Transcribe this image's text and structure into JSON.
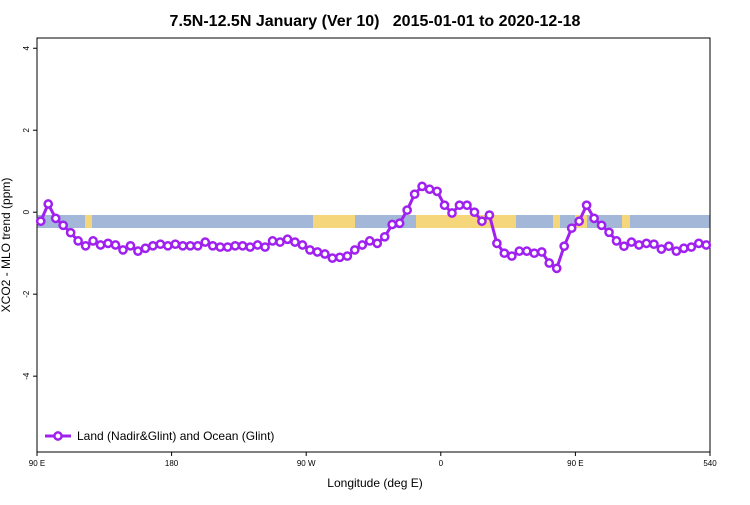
{
  "chart_data": {
    "type": "line",
    "title": "7.5N-12.5N January (Ver 10)   2015-01-01 to 2020-12-18",
    "xlabel": "Longitude (deg E)",
    "ylabel": "XCO2 - MLO trend (ppm)",
    "x": [
      92.5,
      97.5,
      102.5,
      107.5,
      112.5,
      117.5,
      122.5,
      127.5,
      132.5,
      137.5,
      142.5,
      147.5,
      152.5,
      157.5,
      162.5,
      167.5,
      172.5,
      177.5,
      182.5,
      187.5,
      192.5,
      197.5,
      202.5,
      207.5,
      212.5,
      217.5,
      222.5,
      227.5,
      232.5,
      237.5,
      242.5,
      247.5,
      252.5,
      257.5,
      262.5,
      267.5,
      272.5,
      277.5,
      282.5,
      287.5,
      292.5,
      297.5,
      302.5,
      307.5,
      312.5,
      317.5,
      322.5,
      327.5,
      332.5,
      337.5,
      342.5,
      347.5,
      352.5,
      357.5,
      362.5,
      367.5,
      372.5,
      377.5,
      382.5,
      387.5,
      392.5,
      397.5,
      402.5,
      407.5,
      412.5,
      417.5,
      422.5,
      427.5,
      432.5,
      437.5,
      442.5,
      447.5,
      452.5,
      457.5,
      462.5,
      467.5,
      472.5,
      477.5,
      482.5,
      487.5,
      492.5,
      497.5,
      502.5,
      507.5,
      512.5,
      517.5,
      522.5,
      527.5,
      532.5,
      537.5
    ],
    "series": [
      {
        "name": "Land (Nadir&Glint) and Ocean (Glint)",
        "color": "#a020f0",
        "values": [
          -0.22,
          0.2,
          -0.15,
          -0.32,
          -0.5,
          -0.7,
          -0.82,
          -0.7,
          -0.8,
          -0.76,
          -0.8,
          -0.92,
          -0.82,
          -0.95,
          -0.88,
          -0.82,
          -0.78,
          -0.82,
          -0.78,
          -0.82,
          -0.82,
          -0.82,
          -0.73,
          -0.82,
          -0.85,
          -0.85,
          -0.82,
          -0.82,
          -0.85,
          -0.8,
          -0.85,
          -0.7,
          -0.73,
          -0.66,
          -0.73,
          -0.8,
          -0.92,
          -0.97,
          -1.02,
          -1.12,
          -1.1,
          -1.07,
          -0.92,
          -0.8,
          -0.7,
          -0.76,
          -0.6,
          -0.3,
          -0.27,
          0.05,
          0.44,
          0.63,
          0.56,
          0.51,
          0.17,
          -0.02,
          0.17,
          0.17,
          0,
          -0.22,
          -0.07,
          -0.76,
          -1.0,
          -1.07,
          -0.95,
          -0.95,
          -1.0,
          -0.97,
          -1.24,
          -1.37,
          -0.83,
          -0.39,
          -0.22,
          0.17,
          -0.15,
          -0.32,
          -0.49,
          -0.7,
          -0.83,
          -0.73,
          -0.8,
          -0.76,
          -0.78,
          -0.9,
          -0.83,
          -0.95,
          -0.88,
          -0.85,
          -0.76,
          -0.8
        ]
      }
    ],
    "xlim": [
      90,
      540
    ],
    "xticks": [
      {
        "value": 90,
        "label": "90 E"
      },
      180,
      {
        "value": 270,
        "label": "90 W"
      },
      {
        "value": 360,
        "label": "0"
      },
      {
        "value": 450,
        "label": "90 E"
      },
      540
    ],
    "ylim": [
      -5.85,
      4.25
    ],
    "yticks": [
      -4,
      -2,
      0,
      2,
      4
    ],
    "legend": "bottom-left"
  }
}
